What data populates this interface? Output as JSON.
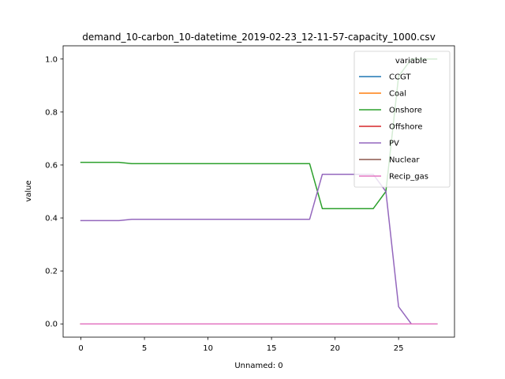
{
  "chart_data": {
    "type": "line",
    "title": "demand_10-carbon_10-datetime_2019-02-23_12-11-57-capacity_1000.csv",
    "xlabel": "Unnamed: 0",
    "ylabel": "value",
    "xlim": [
      -1.4,
      29.4
    ],
    "ylim": [
      -0.05,
      1.05
    ],
    "xticks": [
      0,
      5,
      10,
      15,
      20,
      25
    ],
    "xtick_labels": [
      "0",
      "5",
      "10",
      "15",
      "20",
      "25"
    ],
    "yticks": [
      0.0,
      0.2,
      0.4,
      0.6,
      0.8,
      1.0
    ],
    "ytick_labels": [
      "0.0",
      "0.2",
      "0.4",
      "0.6",
      "0.8",
      "1.0"
    ],
    "grid": false,
    "legend": {
      "title": "variable",
      "position": "top-right"
    },
    "x": [
      0,
      1,
      2,
      3,
      4,
      5,
      6,
      7,
      8,
      9,
      10,
      11,
      12,
      13,
      14,
      15,
      16,
      17,
      18,
      19,
      20,
      21,
      22,
      23,
      24,
      25,
      26,
      27,
      28
    ],
    "series": [
      {
        "name": "CCGT",
        "color": "#1f77b4",
        "values": [
          0,
          0,
          0,
          0,
          0,
          0,
          0,
          0,
          0,
          0,
          0,
          0,
          0,
          0,
          0,
          0,
          0,
          0,
          0,
          0,
          0,
          0,
          0,
          0,
          0,
          0,
          0,
          0,
          0
        ]
      },
      {
        "name": "Coal",
        "color": "#ff7f0e",
        "values": [
          0,
          0,
          0,
          0,
          0,
          0,
          0,
          0,
          0,
          0,
          0,
          0,
          0,
          0,
          0,
          0,
          0,
          0,
          0,
          0,
          0,
          0,
          0,
          0,
          0,
          0,
          0,
          0,
          0
        ]
      },
      {
        "name": "Onshore",
        "color": "#2ca02c",
        "values": [
          0.61,
          0.61,
          0.61,
          0.61,
          0.605,
          0.605,
          0.605,
          0.605,
          0.605,
          0.605,
          0.605,
          0.605,
          0.605,
          0.605,
          0.605,
          0.605,
          0.605,
          0.605,
          0.605,
          0.435,
          0.435,
          0.435,
          0.435,
          0.435,
          0.5,
          0.935,
          1.0,
          1.0,
          1.0
        ]
      },
      {
        "name": "Offshore",
        "color": "#d62728",
        "values": [
          0,
          0,
          0,
          0,
          0,
          0,
          0,
          0,
          0,
          0,
          0,
          0,
          0,
          0,
          0,
          0,
          0,
          0,
          0,
          0,
          0,
          0,
          0,
          0,
          0,
          0,
          0,
          0,
          0
        ]
      },
      {
        "name": "PV",
        "color": "#9467bd",
        "values": [
          0.39,
          0.39,
          0.39,
          0.39,
          0.395,
          0.395,
          0.395,
          0.395,
          0.395,
          0.395,
          0.395,
          0.395,
          0.395,
          0.395,
          0.395,
          0.395,
          0.395,
          0.395,
          0.395,
          0.565,
          0.565,
          0.565,
          0.565,
          0.565,
          0.5,
          0.065,
          0.0,
          0.0,
          0.0
        ]
      },
      {
        "name": "Nuclear",
        "color": "#8c564b",
        "values": [
          0,
          0,
          0,
          0,
          0,
          0,
          0,
          0,
          0,
          0,
          0,
          0,
          0,
          0,
          0,
          0,
          0,
          0,
          0,
          0,
          0,
          0,
          0,
          0,
          0,
          0,
          0,
          0,
          0
        ]
      },
      {
        "name": "Recip_gas",
        "color": "#e377c2",
        "values": [
          0,
          0,
          0,
          0,
          0,
          0,
          0,
          0,
          0,
          0,
          0,
          0,
          0,
          0,
          0,
          0,
          0,
          0,
          0,
          0,
          0,
          0,
          0,
          0,
          0,
          0,
          0,
          0,
          0
        ]
      }
    ]
  }
}
